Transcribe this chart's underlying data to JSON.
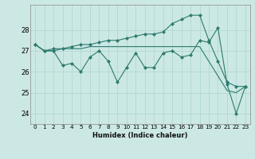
{
  "xlabel": "Humidex (Indice chaleur)",
  "ylabel": "",
  "bg_color": "#cce8e4",
  "line_color": "#2d7a6e",
  "grid_color": "#aad4cc",
  "x": [
    0,
    1,
    2,
    3,
    4,
    5,
    6,
    7,
    8,
    9,
    10,
    11,
    12,
    13,
    14,
    15,
    16,
    17,
    18,
    19,
    20,
    21,
    22,
    23
  ],
  "series1": [
    27.3,
    27.0,
    27.0,
    26.3,
    26.4,
    26.0,
    26.7,
    27.0,
    26.5,
    25.5,
    26.2,
    26.9,
    26.2,
    26.2,
    26.9,
    27.0,
    26.7,
    26.8,
    27.5,
    27.4,
    28.1,
    25.4,
    24.0,
    25.3
  ],
  "series2": [
    27.3,
    27.0,
    27.1,
    27.1,
    27.2,
    27.3,
    27.3,
    27.4,
    27.5,
    27.5,
    27.6,
    27.7,
    27.8,
    27.8,
    27.9,
    28.3,
    28.5,
    28.7,
    28.7,
    27.5,
    26.5,
    25.5,
    25.3,
    25.3
  ],
  "series3": [
    27.3,
    27.0,
    27.0,
    27.1,
    27.1,
    27.1,
    27.2,
    27.2,
    27.2,
    27.2,
    27.2,
    27.2,
    27.2,
    27.2,
    27.2,
    27.2,
    27.2,
    27.2,
    27.2,
    26.5,
    25.8,
    25.1,
    25.0,
    25.3
  ],
  "ylim": [
    23.5,
    29.2
  ],
  "yticks": [
    24,
    25,
    26,
    27,
    28
  ],
  "xlim": [
    -0.5,
    23.5
  ],
  "xlabel_fontsize": 6.0,
  "tick_fontsize": 5.2,
  "ytick_fontsize": 6.0,
  "lw": 0.8,
  "ms": 2.2
}
